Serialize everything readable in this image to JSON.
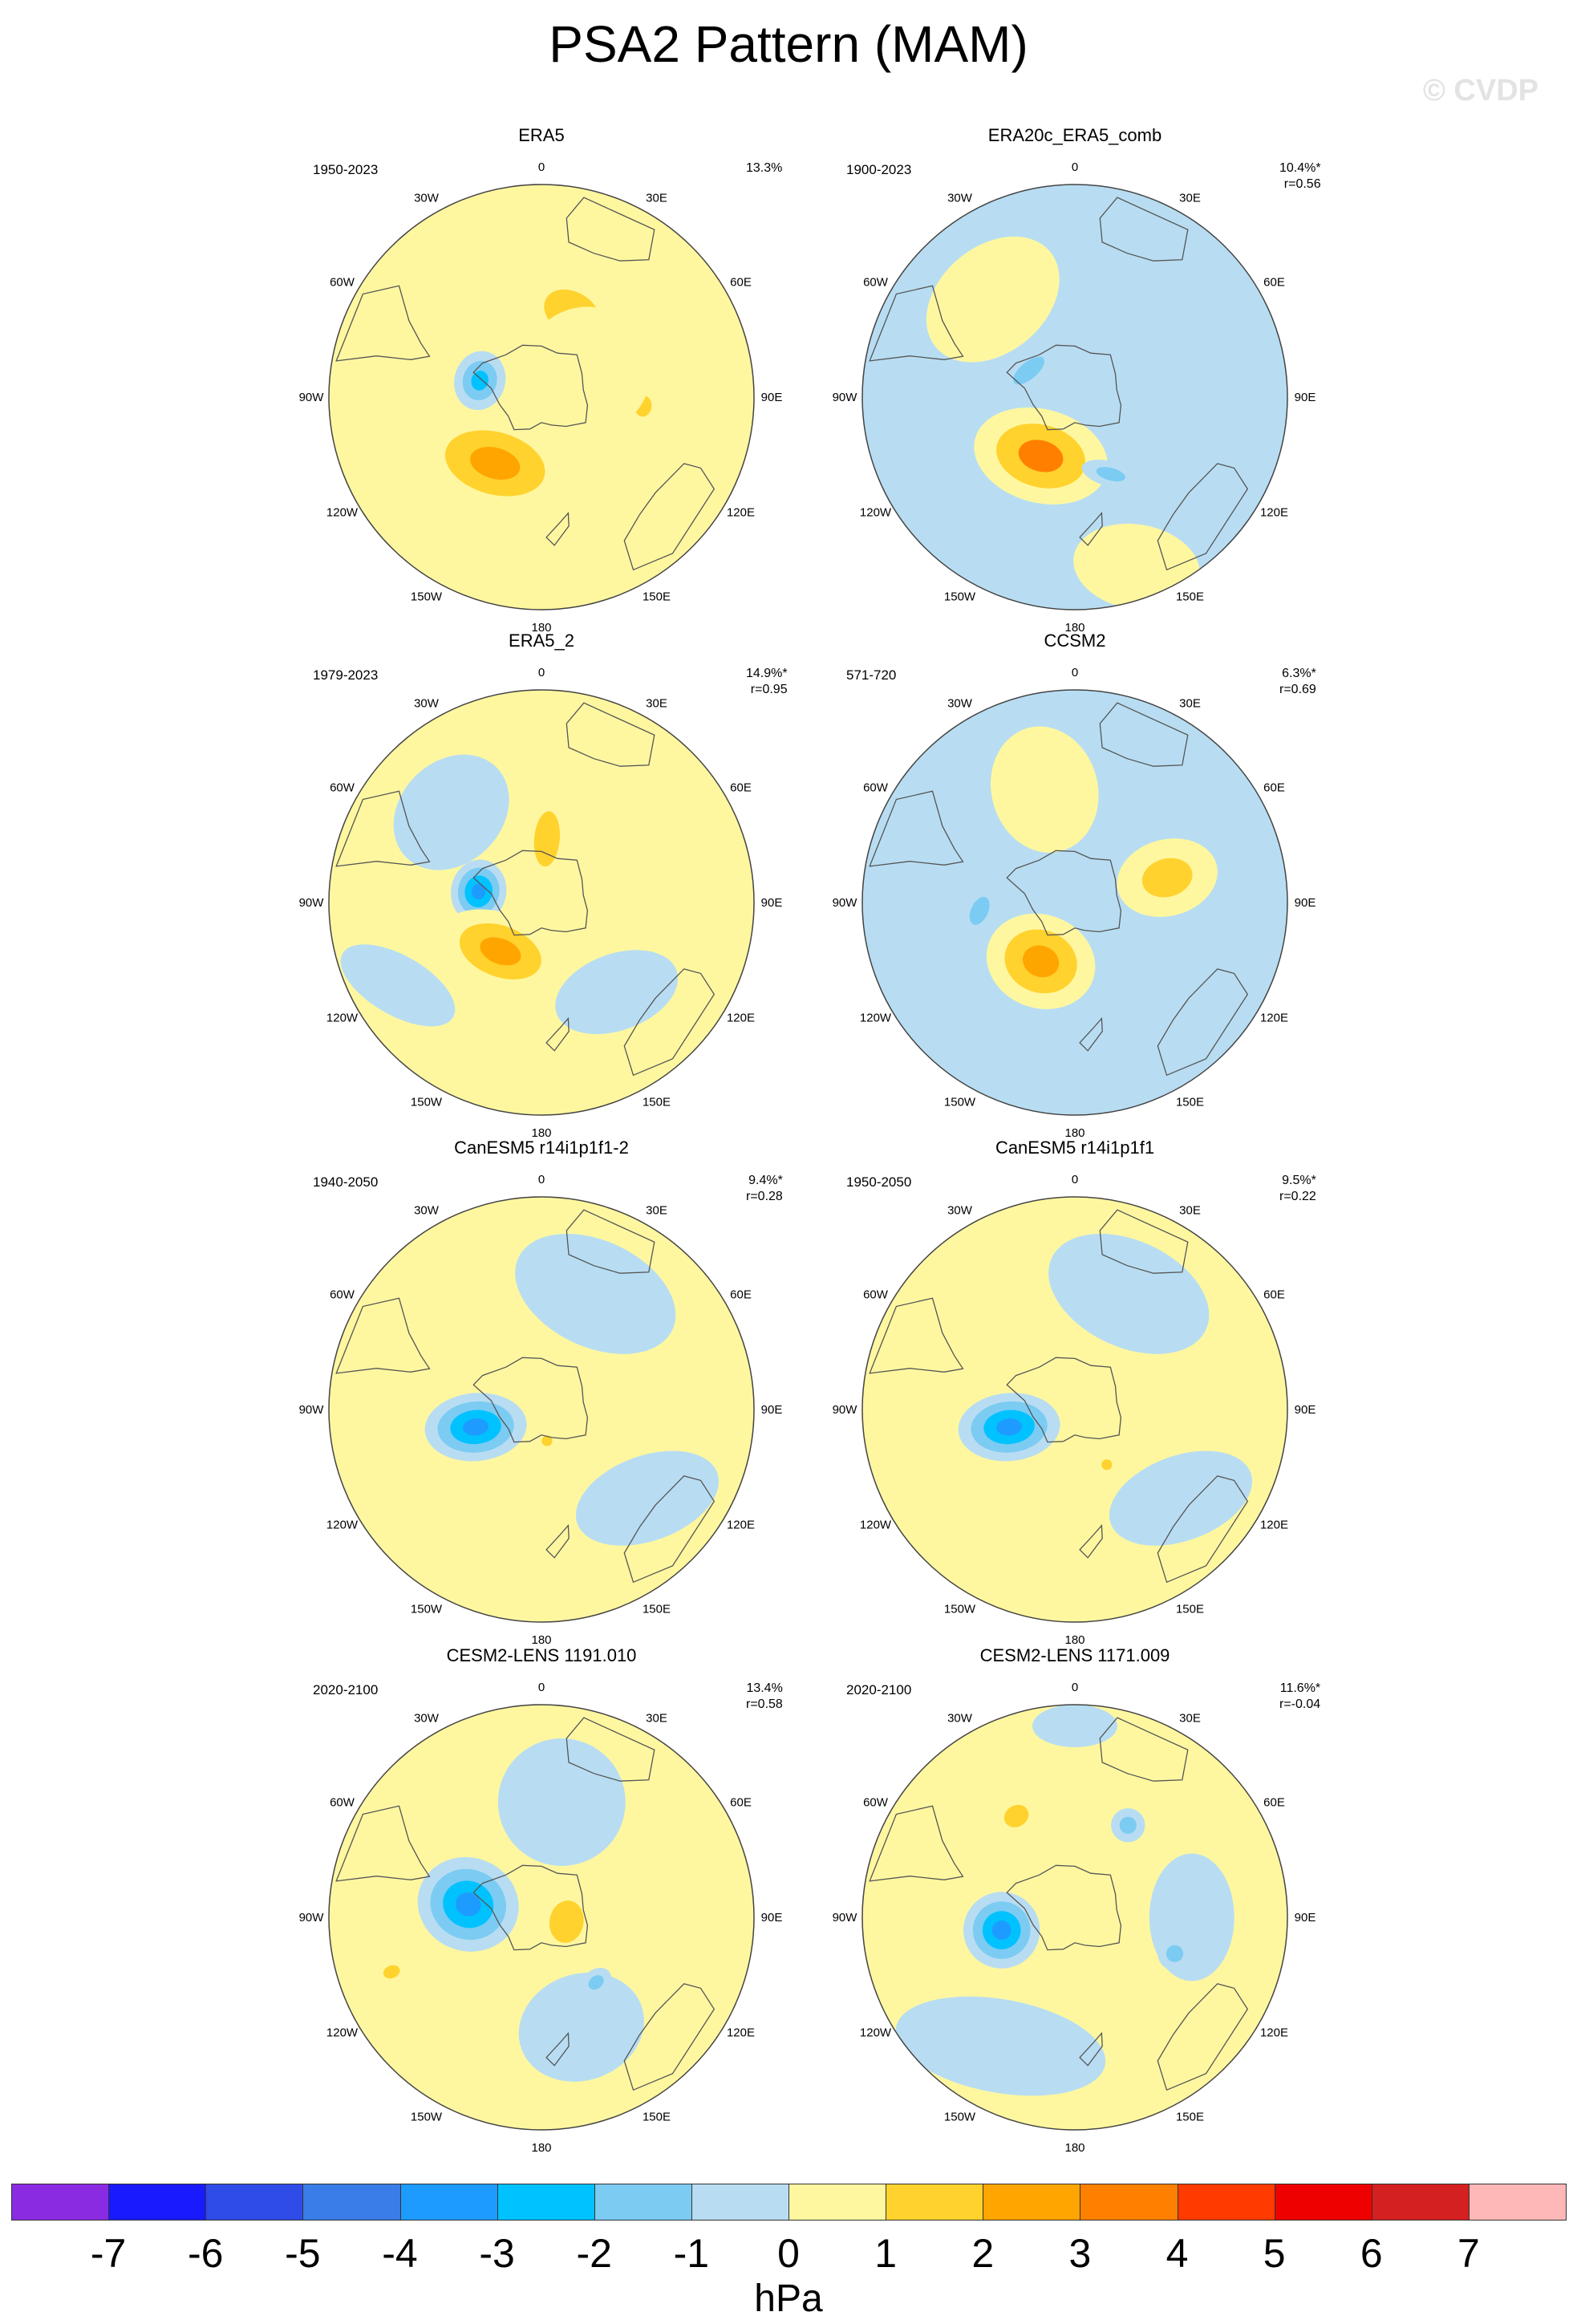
{
  "title": "PSA2 Pattern (MAM)",
  "watermark": "© CVDP",
  "colors": {
    "land_outline": "#555555",
    "circle_outline": "#444444"
  },
  "lon_labels": [
    "0",
    "30E",
    "60E",
    "90E",
    "120E",
    "150E",
    "180",
    "150W",
    "120W",
    "90W",
    "60W",
    "30W"
  ],
  "chart_data": {
    "type": "heatmap",
    "projection": "south-polar-stereographic",
    "units": "hPa",
    "colorbar": {
      "levels": [
        -7,
        -6,
        -5,
        -4,
        -3,
        -2,
        -1,
        0,
        1,
        2,
        3,
        4,
        5,
        6,
        7
      ],
      "colors": [
        "#8a2be2",
        "#1a1aff",
        "#2f4ce8",
        "#3a7ce8",
        "#1e9bff",
        "#00c2ff",
        "#7ccbf2",
        "#b8ddf2",
        "#fff7a0",
        "#ffd22e",
        "#ffa500",
        "#ff7f00",
        "#ff3b00",
        "#ee0000",
        "#d42020",
        "#ffb8b8"
      ]
    },
    "panels": [
      {
        "name": "ERA5",
        "years": "1950-2023",
        "pct": "13.3%",
        "r": "",
        "background": 0.5,
        "anomalies": [
          {
            "lon": -40,
            "colat": 0.45,
            "rx": 0.3,
            "ry": 0.2,
            "rot": 0,
            "value": 0.5
          },
          {
            "lon": 20,
            "colat": 0.42,
            "rx": 0.28,
            "ry": 0.2,
            "rot": 10,
            "value": 1.5
          },
          {
            "lon": -75,
            "colat": 0.3,
            "rx": 0.14,
            "ry": 0.12,
            "rot": 0,
            "value": -2.5
          },
          {
            "lon": -145,
            "colat": 0.38,
            "rx": 0.36,
            "ry": 0.22,
            "rot": -20,
            "value": 2.5
          },
          {
            "lon": 95,
            "colat": 0.48,
            "rx": 0.1,
            "ry": 0.08,
            "rot": 0,
            "value": 1.2
          },
          {
            "lon": 60,
            "colat": 0.25,
            "rx": 0.3,
            "ry": 0.3,
            "rot": 0,
            "value": 0.5
          }
        ]
      },
      {
        "name": "ERA20c_ERA5_comb",
        "years": "1900-2023",
        "pct": "10.4%*",
        "r": "r=0.56",
        "background": -0.5,
        "anomalies": [
          {
            "lon": -40,
            "colat": 0.6,
            "rx": 0.35,
            "ry": 0.25,
            "rot": 0,
            "value": 0.5
          },
          {
            "lon": -60,
            "colat": 0.25,
            "rx": 0.18,
            "ry": 0.08,
            "rot": 20,
            "value": -1.5
          },
          {
            "lon": -150,
            "colat": 0.32,
            "rx": 0.32,
            "ry": 0.22,
            "rot": -15,
            "value": 3.0
          },
          {
            "lon": 155,
            "colat": 0.4,
            "rx": 0.14,
            "ry": 0.06,
            "rot": 40,
            "value": -1.3
          },
          {
            "lon": 160,
            "colat": 0.85,
            "rx": 0.3,
            "ry": 0.2,
            "rot": 30,
            "value": 0.5
          }
        ]
      },
      {
        "name": "ERA5_2",
        "years": "1979-2023",
        "pct": "14.9%*",
        "r": "r=0.95",
        "background": 0.5,
        "anomalies": [
          {
            "lon": -45,
            "colat": 0.6,
            "rx": 0.3,
            "ry": 0.24,
            "rot": 0,
            "value": -0.5
          },
          {
            "lon": 140,
            "colat": 0.55,
            "rx": 0.3,
            "ry": 0.18,
            "rot": 20,
            "value": -0.5
          },
          {
            "lon": -120,
            "colat": 0.78,
            "rx": 0.3,
            "ry": 0.14,
            "rot": -30,
            "value": -0.5
          },
          {
            "lon": 5,
            "colat": 0.3,
            "rx": 0.12,
            "ry": 0.26,
            "rot": 0,
            "value": 1.5
          },
          {
            "lon": -80,
            "colat": 0.3,
            "rx": 0.15,
            "ry": 0.13,
            "rot": 0,
            "value": -3.5
          },
          {
            "lon": -140,
            "colat": 0.3,
            "rx": 0.3,
            "ry": 0.18,
            "rot": -20,
            "value": 2.5
          }
        ]
      },
      {
        "name": "CCSM2",
        "years": "571-720",
        "pct": "6.3%*",
        "r": "r=0.69",
        "background": -0.5,
        "anomalies": [
          {
            "lon": -15,
            "colat": 0.55,
            "rx": 0.25,
            "ry": 0.3,
            "rot": 0,
            "value": 0.5
          },
          {
            "lon": 75,
            "colat": 0.45,
            "rx": 0.18,
            "ry": 0.24,
            "rot": 0,
            "value": 1.5
          },
          {
            "lon": -150,
            "colat": 0.32,
            "rx": 0.26,
            "ry": 0.22,
            "rot": -10,
            "value": 2.5
          },
          {
            "lon": -95,
            "colat": 0.45,
            "rx": 0.14,
            "ry": 0.08,
            "rot": 30,
            "value": -1.5
          }
        ]
      },
      {
        "name": "CanESM5 r14i1p1f1-2",
        "years": "1940-2050",
        "pct": "9.4%*",
        "r": "r=0.28",
        "background": 0.5,
        "anomalies": [
          {
            "lon": 25,
            "colat": 0.6,
            "rx": 0.4,
            "ry": 0.25,
            "rot": 0,
            "value": -0.5
          },
          {
            "lon": 130,
            "colat": 0.65,
            "rx": 0.35,
            "ry": 0.2,
            "rot": 30,
            "value": -0.5
          },
          {
            "lon": -105,
            "colat": 0.32,
            "rx": 0.16,
            "ry": 0.24,
            "rot": 10,
            "value": -3.5
          },
          {
            "lon": 170,
            "colat": 0.15,
            "rx": 0.05,
            "ry": 0.05,
            "rot": 0,
            "value": 1.2
          }
        ]
      },
      {
        "name": "CanESM5 r14i1p1f1",
        "years": "1950-2050",
        "pct": "9.5%*",
        "r": "r=0.22",
        "background": 0.5,
        "anomalies": [
          {
            "lon": 25,
            "colat": 0.6,
            "rx": 0.4,
            "ry": 0.25,
            "rot": 0,
            "value": -0.5
          },
          {
            "lon": 130,
            "colat": 0.65,
            "rx": 0.35,
            "ry": 0.2,
            "rot": 30,
            "value": -0.5
          },
          {
            "lon": -105,
            "colat": 0.32,
            "rx": 0.16,
            "ry": 0.24,
            "rot": 10,
            "value": -3.5
          },
          {
            "lon": 150,
            "colat": 0.3,
            "rx": 0.05,
            "ry": 0.05,
            "rot": 0,
            "value": 1.2
          }
        ]
      },
      {
        "name": "CESM2-LENS 1191.010",
        "years": "2020-2100",
        "pct": "13.4%",
        "r": "r=0.58",
        "background": 0.5,
        "anomalies": [
          {
            "lon": 10,
            "colat": 0.55,
            "rx": 0.3,
            "ry": 0.3,
            "rot": 0,
            "value": -0.5
          },
          {
            "lon": 160,
            "colat": 0.55,
            "rx": 0.3,
            "ry": 0.25,
            "rot": 0,
            "value": -0.5
          },
          {
            "lon": -80,
            "colat": 0.35,
            "rx": 0.22,
            "ry": 0.24,
            "rot": 10,
            "value": -3.5
          },
          {
            "lon": 100,
            "colat": 0.12,
            "rx": 0.2,
            "ry": 0.16,
            "rot": 0,
            "value": 1.5
          },
          {
            "lon": 140,
            "colat": 0.4,
            "rx": 0.08,
            "ry": 0.06,
            "rot": 0,
            "value": -1.3
          },
          {
            "lon": -110,
            "colat": 0.75,
            "rx": 0.06,
            "ry": 0.08,
            "rot": 0,
            "value": 1.2
          }
        ]
      },
      {
        "name": "CESM2-LENS 1171.009",
        "years": "2020-2100",
        "pct": "11.6%*",
        "r": "r=-0.04",
        "background": 0.5,
        "anomalies": [
          {
            "lon": -150,
            "colat": 0.7,
            "rx": 0.5,
            "ry": 0.22,
            "rot": -20,
            "value": -0.5
          },
          {
            "lon": 90,
            "colat": 0.55,
            "rx": 0.3,
            "ry": 0.2,
            "rot": 0,
            "value": -0.5
          },
          {
            "lon": 0,
            "colat": 0.9,
            "rx": 0.2,
            "ry": 0.1,
            "rot": 0,
            "value": -0.5
          },
          {
            "lon": -100,
            "colat": 0.35,
            "rx": 0.18,
            "ry": 0.18,
            "rot": 0,
            "value": -3.5
          },
          {
            "lon": -30,
            "colat": 0.55,
            "rx": 0.12,
            "ry": 0.1,
            "rot": 0,
            "value": 1.5
          },
          {
            "lon": 30,
            "colat": 0.5,
            "rx": 0.08,
            "ry": 0.08,
            "rot": 0,
            "value": -1.3
          },
          {
            "lon": 110,
            "colat": 0.5,
            "rx": 0.08,
            "ry": 0.08,
            "rot": 0,
            "value": -1.3
          }
        ]
      }
    ]
  }
}
